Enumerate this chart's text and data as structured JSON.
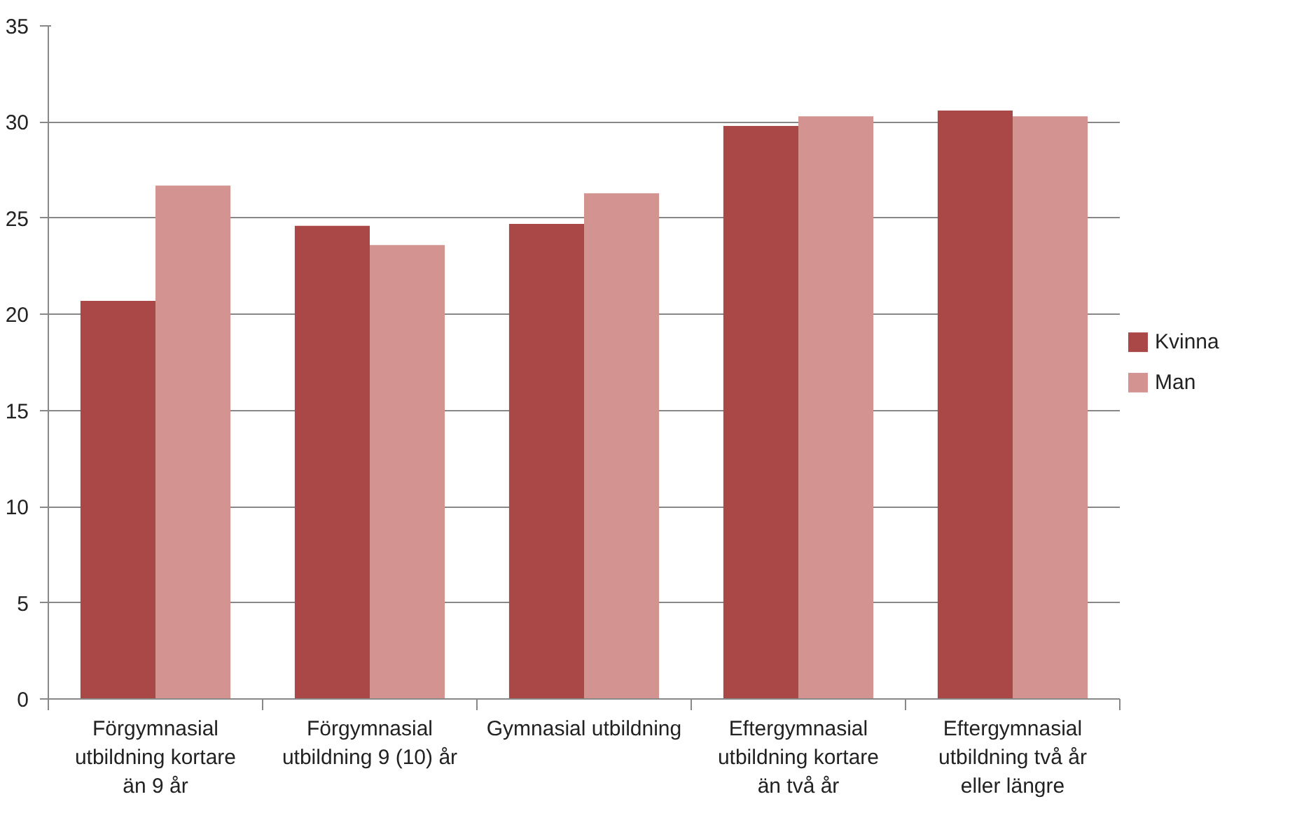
{
  "chart_data": {
    "type": "bar",
    "categories": [
      "Förgymnasial utbildning kortare än 9 år",
      "Förgymnasial utbildning 9 (10) år",
      "Gymnasial utbildning",
      "Eftergymnasial utbildning kortare än två år",
      "Eftergymnasial utbildning två år eller längre"
    ],
    "series": [
      {
        "name": "Kvinna",
        "color": "#a94846",
        "values": [
          20.7,
          24.6,
          24.7,
          29.8,
          30.6
        ]
      },
      {
        "name": "Man",
        "color": "#d39391",
        "values": [
          26.7,
          23.6,
          26.3,
          30.3,
          30.3
        ]
      }
    ],
    "ylim": [
      0,
      35
    ],
    "yticks": [
      0,
      5,
      10,
      15,
      20,
      25,
      30,
      35
    ],
    "grid": "y",
    "legend": "right"
  }
}
